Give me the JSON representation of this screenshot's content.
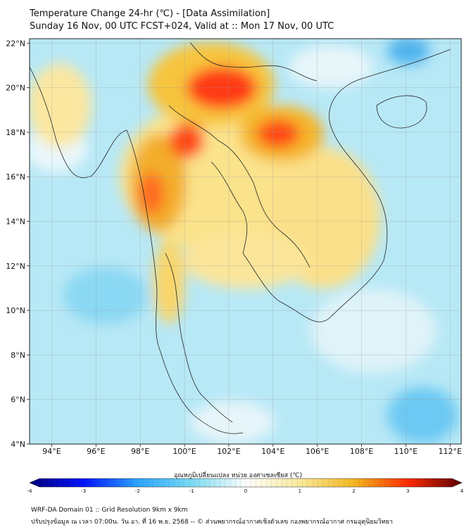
{
  "title": {
    "line1": "Temperature Change 24-hr (℃) - [Data Assimilation]",
    "line2": "Sunday 16 Nov, 00 UTC FCST+024, Valid at :: Mon 17 Nov, 00 UTC"
  },
  "map": {
    "lon_range": [
      93,
      112.5
    ],
    "lat_range": [
      4,
      22.2
    ],
    "lon_ticks": [
      94,
      96,
      98,
      100,
      102,
      104,
      106,
      108,
      110,
      112
    ],
    "lon_tick_labels": [
      "94°E",
      "96°E",
      "98°E",
      "100°E",
      "102°E",
      "104°E",
      "106°E",
      "108°E",
      "110°E",
      "112°E"
    ],
    "lat_ticks": [
      4,
      6,
      8,
      10,
      12,
      14,
      16,
      18,
      20,
      22
    ],
    "lat_tick_labels": [
      "4°N",
      "6°N",
      "8°N",
      "10°N",
      "12°N",
      "14°N",
      "16°N",
      "18°N",
      "20°N",
      "22°N"
    ],
    "grid": true,
    "background_color": "#b7e8f6"
  },
  "colorbar": {
    "label": "อุณหภูมิเปลี่ยนแปลง หน่วย องศาเซลเซียส (℃)",
    "min": -4,
    "max": 4,
    "ticks": [
      -4,
      -3,
      -2,
      -1,
      0,
      1,
      2,
      3,
      4
    ],
    "tick_labels": [
      "-4",
      "-3",
      "-2",
      "-1",
      "0",
      "1",
      "2",
      "3",
      "4"
    ],
    "stops": [
      "#00007a",
      "#0012ff",
      "#2aa4ff",
      "#79dbf4",
      "#ffffff",
      "#fbe99a",
      "#f3b820",
      "#ff2a00",
      "#5a0000"
    ]
  },
  "footer": {
    "line1": "WRF-DA Domain 01 :: Grid Resolution 9km x 9km",
    "line2": "ปรับปรุงข้อมูล ณ เวลา 07:00น. วัน อา. ที่ 16 พ.ย. 2568 -- © ส่วนพยากรณ์อากาศเชิงตัวเลข กองพยากรณ์อากาศ กรมอุตุนิยมวิทยา"
  }
}
